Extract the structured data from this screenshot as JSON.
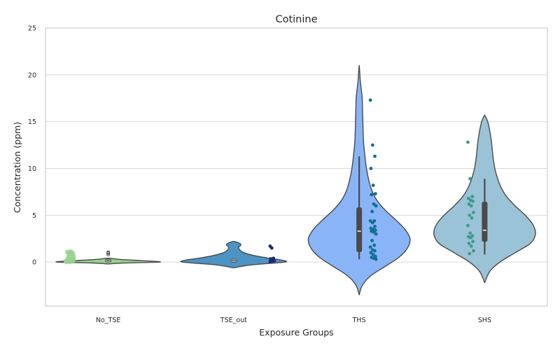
{
  "chart_data": {
    "type": "violin",
    "title": "Cotinine",
    "xlabel": "Exposure Groups",
    "ylabel": "Concentration (ppm)",
    "ylim": [
      -4.7,
      25
    ],
    "yticks": [
      0,
      5,
      10,
      15,
      20,
      25
    ],
    "grid": "y",
    "categories": [
      "No_TSE",
      "TSE_out",
      "THS",
      "SHS"
    ],
    "colors": {
      "violins": [
        "#98d08f",
        "#4b94c4",
        "#8ab4f8",
        "#9bc3d8"
      ],
      "points": [
        "#98d08f",
        "#1f2b6e",
        "#136e94",
        "#3e9a8a"
      ],
      "outline": "#4a4a4a",
      "grid": "#d9d9d9",
      "frame": "#cccccc"
    },
    "violins": [
      {
        "name": "No_TSE",
        "density": [
          [
            -0.2,
            0.02
          ],
          [
            -0.1,
            0.3
          ],
          [
            0.0,
            1.0
          ],
          [
            0.1,
            0.85
          ],
          [
            0.2,
            0.5
          ],
          [
            0.3,
            0.2
          ],
          [
            0.4,
            0.05
          ]
        ],
        "box": {
          "q1": 0.05,
          "median": 0.15,
          "q3": 0.25,
          "whisker_low": 0.0,
          "whisker_high": 0.4
        },
        "outliers": [
          0.8,
          0.95,
          1.05
        ],
        "points": [
          0.1,
          0.15,
          0.2,
          0.1,
          0.05,
          0.1,
          0.15,
          0.2,
          0.3,
          0.25,
          0.1,
          0.05,
          0.1,
          0.2,
          0.15,
          0.8,
          0.95,
          1.05,
          1.1,
          0.6,
          0.5
        ]
      },
      {
        "name": "TSE_out",
        "density": [
          [
            -0.6,
            0.02
          ],
          [
            -0.3,
            0.35
          ],
          [
            0.0,
            1.0
          ],
          [
            0.2,
            0.95
          ],
          [
            0.4,
            0.7
          ],
          [
            0.7,
            0.4
          ],
          [
            1.0,
            0.2
          ],
          [
            1.3,
            0.12
          ],
          [
            1.6,
            0.1
          ],
          [
            1.8,
            0.14
          ],
          [
            2.0,
            0.12
          ],
          [
            2.2,
            0.02
          ]
        ],
        "box": {
          "q1": 0.05,
          "median": 0.15,
          "q3": 0.25,
          "whisker_low": 0.0,
          "whisker_high": 0.35
        },
        "outliers": [],
        "points": [
          1.7,
          1.5,
          0.4,
          0.35,
          0.3,
          0.25,
          0.2,
          0.2,
          0.15,
          0.1,
          0.1,
          0.05
        ]
      },
      {
        "name": "THS",
        "density": [
          [
            -3.5,
            0.0
          ],
          [
            -2.5,
            0.06
          ],
          [
            -1.5,
            0.22
          ],
          [
            -0.5,
            0.5
          ],
          [
            0.5,
            0.78
          ],
          [
            1.5,
            0.95
          ],
          [
            2.5,
            1.0
          ],
          [
            3.5,
            0.9
          ],
          [
            4.5,
            0.72
          ],
          [
            5.5,
            0.52
          ],
          [
            6.5,
            0.36
          ],
          [
            7.5,
            0.26
          ],
          [
            8.5,
            0.2
          ],
          [
            9.5,
            0.16
          ],
          [
            10.5,
            0.13
          ],
          [
            11.5,
            0.11
          ],
          [
            12.5,
            0.09
          ],
          [
            13.5,
            0.08
          ],
          [
            14.5,
            0.075
          ],
          [
            15.5,
            0.07
          ],
          [
            16.5,
            0.065
          ],
          [
            17.5,
            0.06
          ],
          [
            18.5,
            0.04
          ],
          [
            19.5,
            0.02
          ],
          [
            20.5,
            0.008
          ],
          [
            21.0,
            0.0
          ]
        ],
        "box": {
          "q1": 1.1,
          "median": 3.3,
          "q3": 5.8,
          "whisker_low": 0.3,
          "whisker_high": 11.3
        },
        "outliers": [],
        "points": [
          17.3,
          12.5,
          11.3,
          10.0,
          8.2,
          7.3,
          7.2,
          6.2,
          6.0,
          5.4,
          4.4,
          4.4,
          4.2,
          3.8,
          3.6,
          3.5,
          3.4,
          3.3,
          3.2,
          3.0,
          2.3,
          1.8,
          1.6,
          1.3,
          1.2,
          1.0,
          0.8,
          0.6,
          0.5,
          0.4,
          0.3
        ]
      },
      {
        "name": "SHS",
        "density": [
          [
            -2.2,
            0.0
          ],
          [
            -1.0,
            0.1
          ],
          [
            0.0,
            0.3
          ],
          [
            1.0,
            0.6
          ],
          [
            2.0,
            0.9
          ],
          [
            3.0,
            1.0
          ],
          [
            4.0,
            0.95
          ],
          [
            5.0,
            0.8
          ],
          [
            6.0,
            0.6
          ],
          [
            7.0,
            0.43
          ],
          [
            8.0,
            0.32
          ],
          [
            9.0,
            0.25
          ],
          [
            10.0,
            0.2
          ],
          [
            11.0,
            0.17
          ],
          [
            12.0,
            0.15
          ],
          [
            13.0,
            0.13
          ],
          [
            14.0,
            0.1
          ],
          [
            15.0,
            0.06
          ],
          [
            15.7,
            0.0
          ]
        ],
        "box": {
          "q1": 2.2,
          "median": 3.4,
          "q3": 6.4,
          "whisker_low": 0.8,
          "whisker_high": 8.9
        },
        "outliers": [],
        "points": [
          12.8,
          8.9,
          7.0,
          6.8,
          6.6,
          6.5,
          6.2,
          6.0,
          5.3,
          5.0,
          4.7,
          3.9,
          3.1,
          2.8,
          2.7,
          2.6,
          2.2,
          2.0,
          1.7,
          1.2,
          0.9
        ]
      }
    ]
  }
}
